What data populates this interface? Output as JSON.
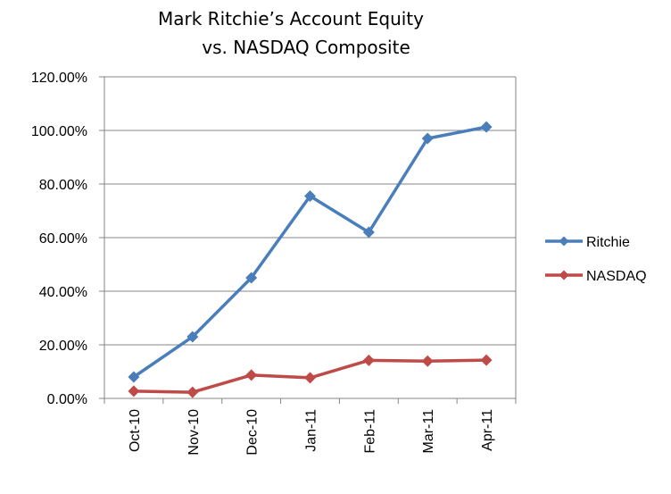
{
  "chart_data": {
    "type": "line",
    "title_lines": [
      "Mark Ritchie’s Account Equity",
      "vs. NASDAQ Composite"
    ],
    "categories": [
      "Oct-10",
      "Nov-10",
      "Dec-10",
      "Jan-11",
      "Feb-11",
      "Mar-11",
      "Apr-11"
    ],
    "y_ticks": [
      "0.00%",
      "20.00%",
      "40.00%",
      "60.00%",
      "80.00%",
      "100.00%",
      "120.00%"
    ],
    "ylim": [
      0,
      120
    ],
    "grid": true,
    "legend_position": "right",
    "series": [
      {
        "name": "Ritchie",
        "color": "#4a7ebb",
        "values": [
          8.0,
          23.0,
          45.0,
          75.5,
          62.0,
          97.0,
          101.3
        ]
      },
      {
        "name": "NASDAQ",
        "color": "#be4b48",
        "values": [
          2.7,
          2.3,
          8.7,
          7.7,
          14.2,
          13.9,
          14.3
        ]
      }
    ]
  }
}
